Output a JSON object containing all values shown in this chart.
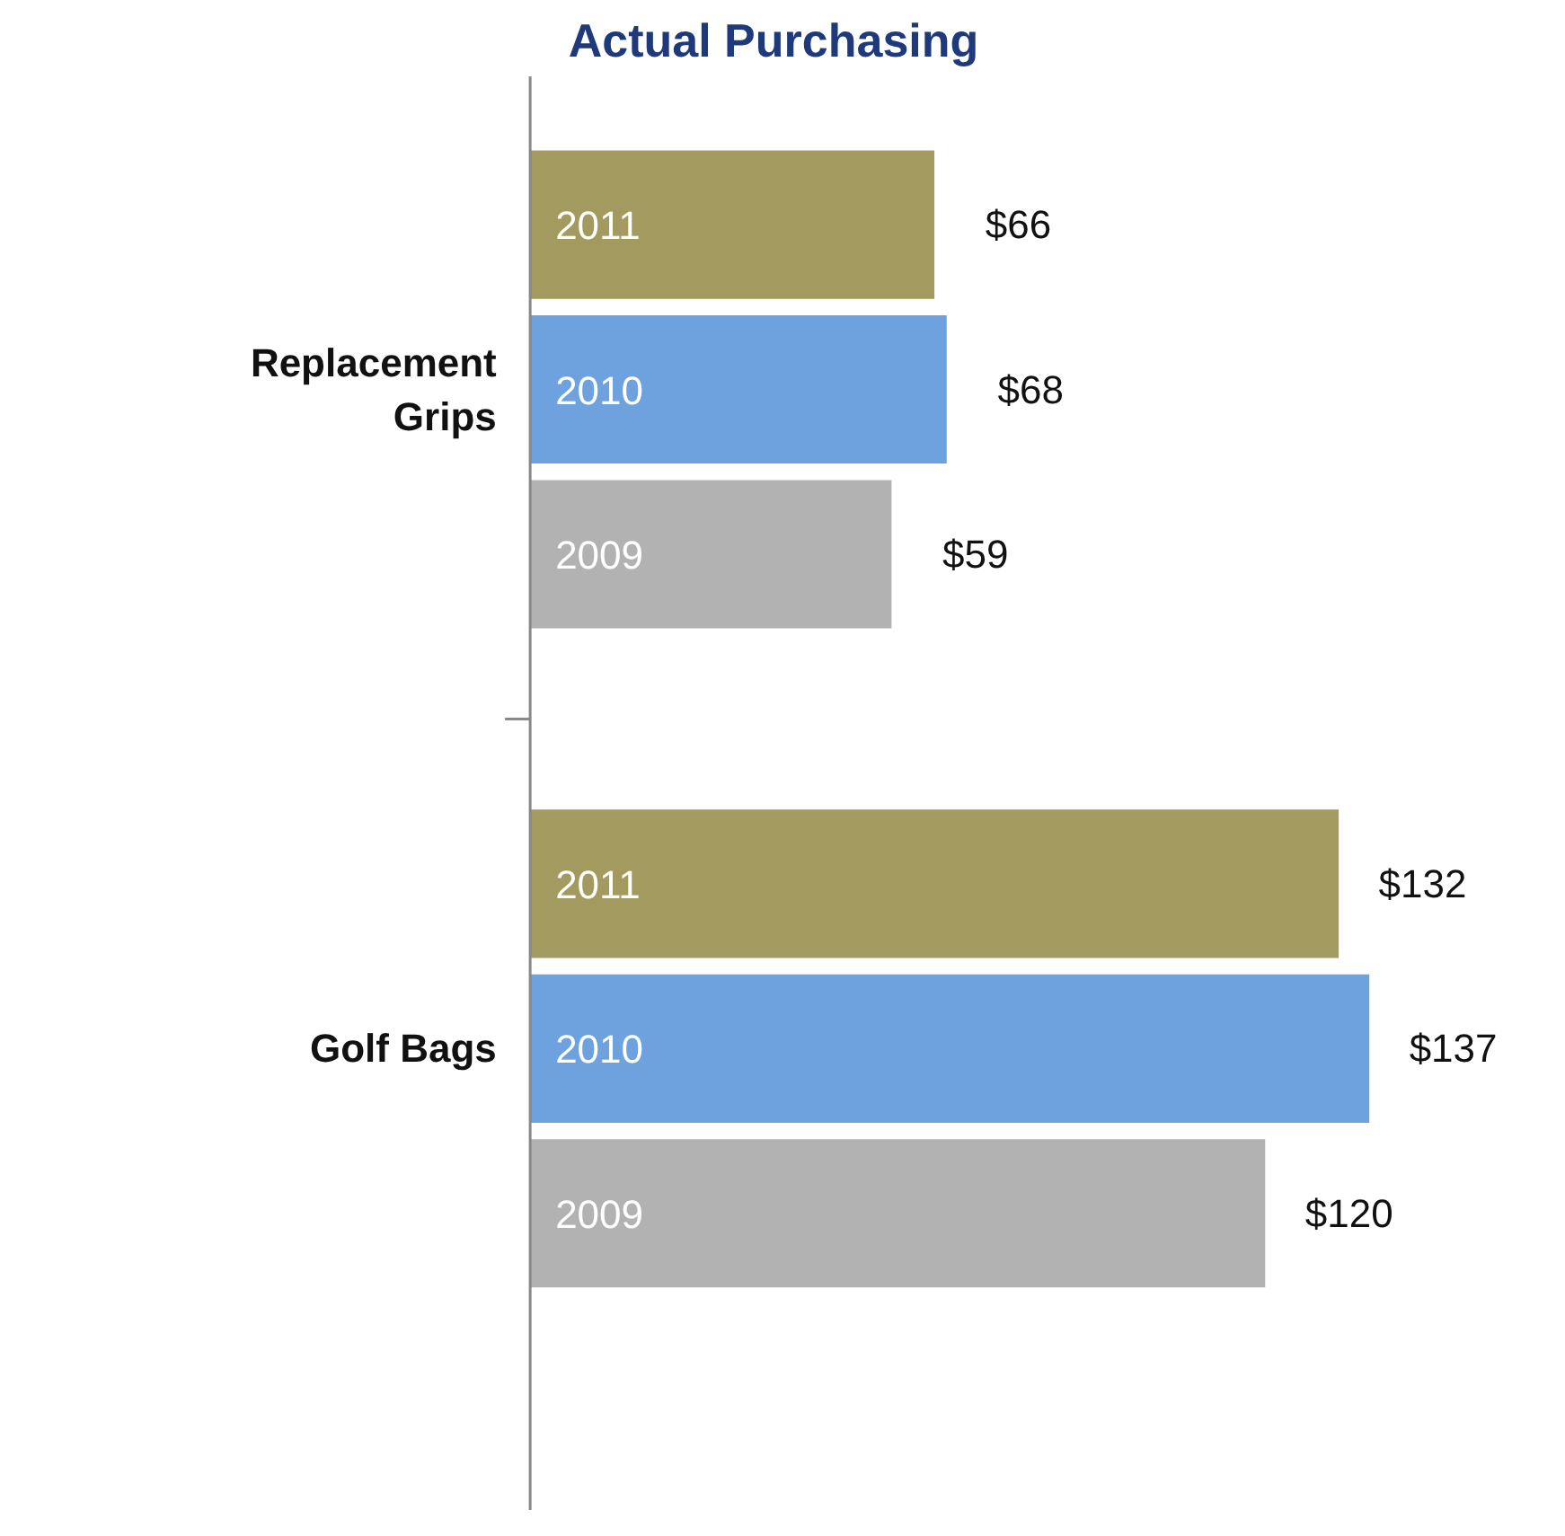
{
  "chart_data": {
    "type": "bar",
    "orientation": "horizontal",
    "title": "Actual Purchasing",
    "categories": [
      "Replacement Grips",
      "Golf Bags"
    ],
    "series": [
      {
        "name": "2011",
        "color": "#a39a5f",
        "values": [
          66,
          132
        ],
        "value_labels": [
          "$66",
          "$132"
        ]
      },
      {
        "name": "2010",
        "color": "#6ea2de",
        "values": [
          68,
          137
        ],
        "value_labels": [
          "$68",
          "$137"
        ]
      },
      {
        "name": "2009",
        "color": "#b2b2b2",
        "values": [
          59,
          120
        ],
        "value_labels": [
          "$59",
          "$120"
        ]
      }
    ],
    "data_labels": true,
    "grid": false
  }
}
